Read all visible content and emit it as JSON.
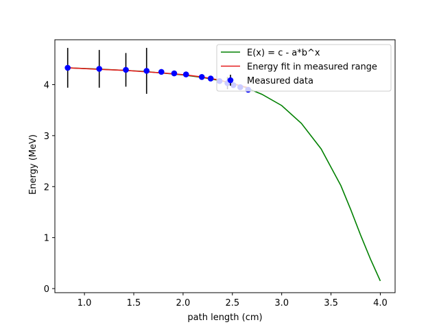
{
  "chart_data": {
    "type": "line",
    "title": "",
    "xlabel": "path length (cm)",
    "ylabel": "Energy (MeV)",
    "xlim": [
      0.7,
      4.15
    ],
    "ylim": [
      -0.08,
      4.88
    ],
    "xticks": [
      1.0,
      1.5,
      2.0,
      2.5,
      3.0,
      3.5,
      4.0
    ],
    "xtick_labels": [
      "1.0",
      "1.5",
      "2.0",
      "2.5",
      "3.0",
      "3.5",
      "4.0"
    ],
    "yticks": [
      0,
      1,
      2,
      3,
      4
    ],
    "ytick_labels": [
      "0",
      "1",
      "2",
      "3",
      "4"
    ],
    "grid": false,
    "legend": "top-right",
    "series": [
      {
        "name": "E(x) = c - a*b^x",
        "kind": "line",
        "color": "#008000",
        "x": [
          0.83,
          1.2,
          1.6,
          2.0,
          2.2,
          2.4,
          2.6,
          2.8,
          3.0,
          3.2,
          3.4,
          3.6,
          3.7,
          3.8,
          3.9,
          4.0
        ],
        "y": [
          4.33,
          4.3,
          4.26,
          4.19,
          4.14,
          4.07,
          3.97,
          3.81,
          3.59,
          3.24,
          2.74,
          2.02,
          1.55,
          1.05,
          0.58,
          0.15
        ]
      },
      {
        "name": "Energy fit in measured range",
        "kind": "line",
        "color": "#e41a1c",
        "x": [
          0.83,
          1.15,
          1.42,
          1.63,
          1.78,
          1.91,
          2.03,
          2.19,
          2.28,
          2.37,
          2.45,
          2.51,
          2.58,
          2.66
        ],
        "y": [
          4.33,
          4.3,
          4.28,
          4.25,
          4.23,
          4.21,
          4.19,
          4.15,
          4.12,
          4.09,
          4.05,
          4.02,
          3.98,
          3.94
        ]
      },
      {
        "name": "Measured data",
        "kind": "errorbar",
        "color": "#0000ff",
        "x": [
          0.83,
          1.15,
          1.42,
          1.63,
          1.78,
          1.91,
          2.03,
          2.19,
          2.28,
          2.37,
          2.45,
          2.51,
          2.58,
          2.66
        ],
        "y": [
          4.33,
          4.31,
          4.29,
          4.27,
          4.25,
          4.22,
          4.2,
          4.15,
          4.12,
          4.07,
          4.03,
          3.99,
          3.95,
          3.9
        ],
        "yerr": [
          0.39,
          0.37,
          0.33,
          0.45,
          0,
          0,
          0,
          0,
          0,
          0,
          0.12,
          0,
          0,
          0
        ]
      }
    ]
  }
}
